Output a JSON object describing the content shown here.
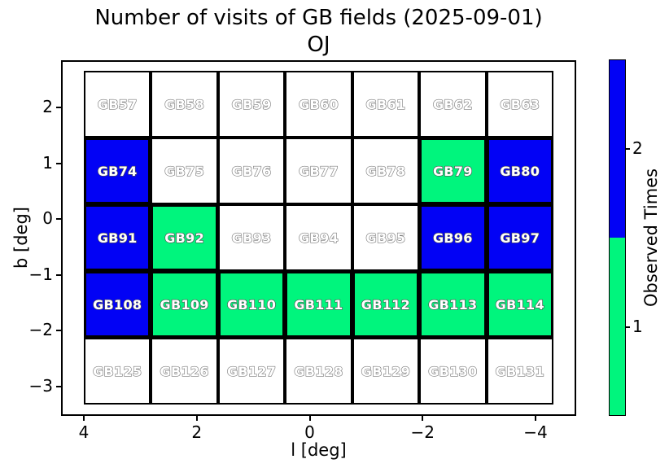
{
  "chart_data": {
    "type": "heatmap",
    "title": "Number of visits of GB fields (2025-09-01)",
    "subtitle": "OJ",
    "xlabel": "l [deg]",
    "ylabel": "b [deg]",
    "x_ticks": [
      "4",
      "2",
      "0",
      "−2",
      "−4"
    ],
    "y_ticks": [
      "2",
      "1",
      "0",
      "−1",
      "−2",
      "−3"
    ],
    "x_axis_inverted": true,
    "grid_shape": {
      "rows": 5,
      "cols": 7
    },
    "visit_colors": {
      "0": "#ffffff",
      "1": "#00f57d",
      "2": "#0202f5"
    },
    "colorbar": {
      "label": "Observed Times",
      "tick_labels": [
        "2",
        "1"
      ],
      "segment_colors_top_to_bottom": [
        "#0202f5",
        "#00f57d"
      ]
    },
    "fields": [
      [
        {
          "label": "GB57",
          "visits": 0
        },
        {
          "label": "GB58",
          "visits": 0
        },
        {
          "label": "GB59",
          "visits": 0
        },
        {
          "label": "GB60",
          "visits": 0
        },
        {
          "label": "GB61",
          "visits": 0
        },
        {
          "label": "GB62",
          "visits": 0
        },
        {
          "label": "GB63",
          "visits": 0
        }
      ],
      [
        {
          "label": "GB74",
          "visits": 2
        },
        {
          "label": "GB75",
          "visits": 0
        },
        {
          "label": "GB76",
          "visits": 0
        },
        {
          "label": "GB77",
          "visits": 0
        },
        {
          "label": "GB78",
          "visits": 0
        },
        {
          "label": "GB79",
          "visits": 1
        },
        {
          "label": "GB80",
          "visits": 2
        }
      ],
      [
        {
          "label": "GB91",
          "visits": 2
        },
        {
          "label": "GB92",
          "visits": 1
        },
        {
          "label": "GB93",
          "visits": 0
        },
        {
          "label": "GB94",
          "visits": 0
        },
        {
          "label": "GB95",
          "visits": 0
        },
        {
          "label": "GB96",
          "visits": 2
        },
        {
          "label": "GB97",
          "visits": 2
        }
      ],
      [
        {
          "label": "GB108",
          "visits": 2
        },
        {
          "label": "GB109",
          "visits": 1
        },
        {
          "label": "GB110",
          "visits": 1
        },
        {
          "label": "GB111",
          "visits": 1
        },
        {
          "label": "GB112",
          "visits": 1
        },
        {
          "label": "GB113",
          "visits": 1
        },
        {
          "label": "GB114",
          "visits": 1
        }
      ],
      [
        {
          "label": "GB125",
          "visits": 0
        },
        {
          "label": "GB126",
          "visits": 0
        },
        {
          "label": "GB127",
          "visits": 0
        },
        {
          "label": "GB128",
          "visits": 0
        },
        {
          "label": "GB129",
          "visits": 0
        },
        {
          "label": "GB130",
          "visits": 0
        },
        {
          "label": "GB131",
          "visits": 0
        }
      ]
    ]
  }
}
